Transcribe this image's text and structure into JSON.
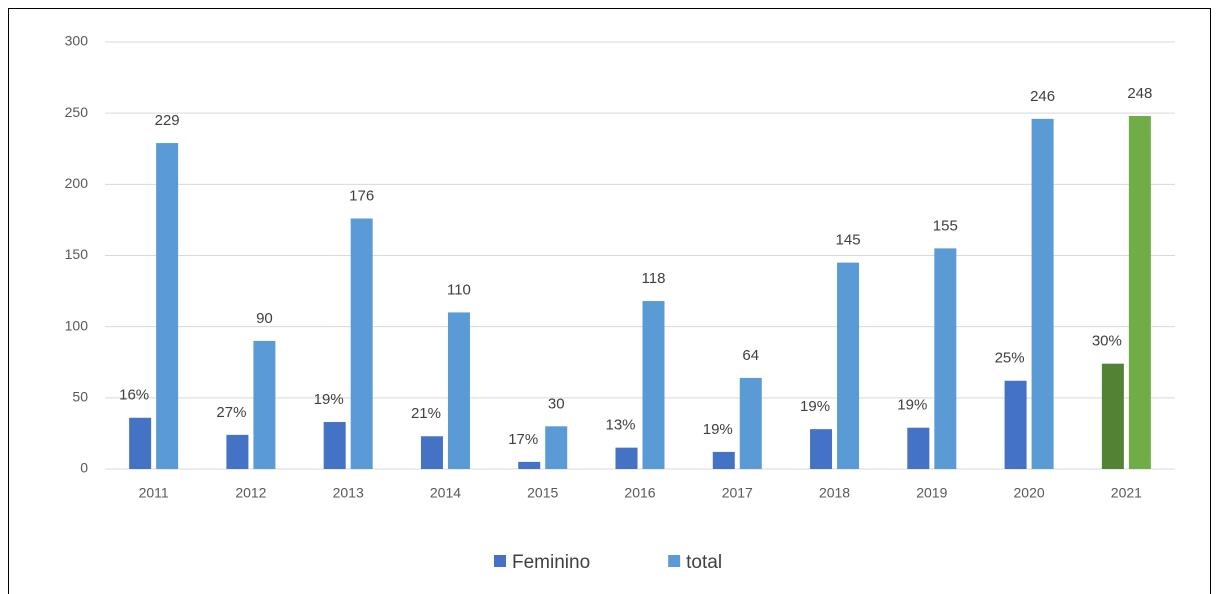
{
  "chart_data": {
    "type": "bar",
    "categories": [
      "2011",
      "2012",
      "2013",
      "2014",
      "2015",
      "2016",
      "2017",
      "2018",
      "2019",
      "2020",
      "2021"
    ],
    "series": [
      {
        "name": "Feminino",
        "color": "#4472c4",
        "colors": [
          "#4472c4",
          "#4472c4",
          "#4472c4",
          "#4472c4",
          "#4472c4",
          "#4472c4",
          "#4472c4",
          "#4472c4",
          "#4472c4",
          "#4472c4",
          "#548235"
        ],
        "values": [
          36,
          24,
          33,
          23,
          5,
          15,
          12,
          28,
          29,
          62,
          74
        ]
      },
      {
        "name": "total",
        "color": "#5b9bd5",
        "colors": [
          "#5b9bd5",
          "#5b9bd5",
          "#5b9bd5",
          "#5b9bd5",
          "#5b9bd5",
          "#5b9bd5",
          "#5b9bd5",
          "#5b9bd5",
          "#5b9bd5",
          "#5b9bd5",
          "#70ad47"
        ],
        "values": [
          229,
          90,
          176,
          110,
          30,
          118,
          64,
          145,
          155,
          246,
          248
        ]
      }
    ],
    "annotations": [
      "16%",
      "27%",
      "19%",
      "21%",
      "17%",
      "13%",
      "19%",
      "19%",
      "19%",
      "25%",
      "30%"
    ],
    "ylim": [
      0,
      300
    ],
    "yticks": [
      0,
      50,
      100,
      150,
      200,
      250,
      300
    ],
    "grid": true,
    "legend": "bottom"
  }
}
